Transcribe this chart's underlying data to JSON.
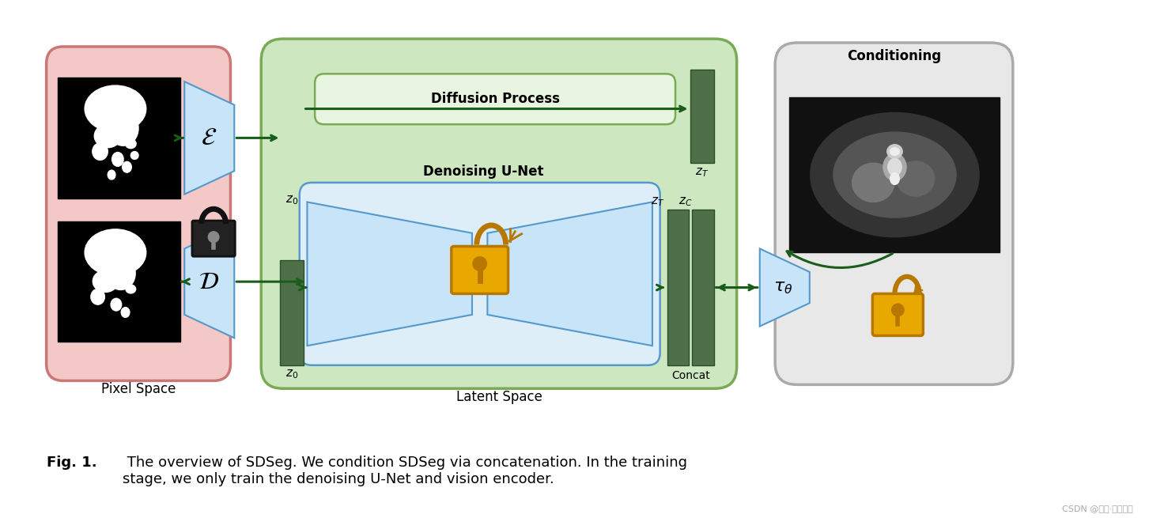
{
  "fig_width": 14.77,
  "fig_height": 6.55,
  "bg_color": "#ffffff",
  "caption_bold": "Fig. 1.",
  "caption_normal": " The overview of SDSeg. We condition SDSeg via concatenation. In the training\nstage, we only train the denoising U-Net and vision encoder.",
  "watermark": "CSDN @风飘·剑染春水"
}
